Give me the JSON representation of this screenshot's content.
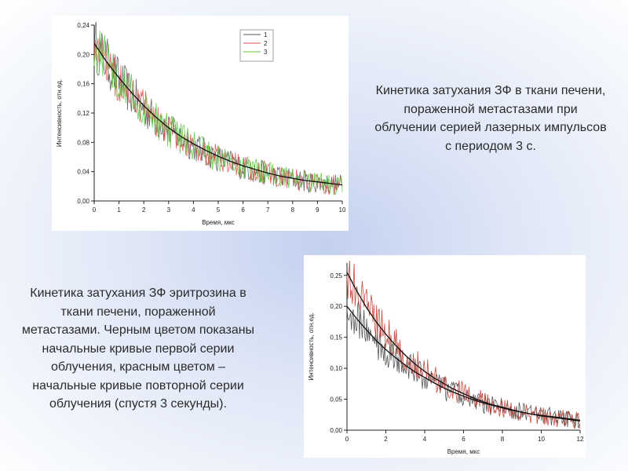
{
  "caption_top": "Кинетика затухания ЗФ в ткани печени, пораженной метастазами при облучении серией лазерных импульсов с периодом 3 с.",
  "caption_bottom": "Кинетика затухания ЗФ эритрозина в ткани печени, пораженной метастазами. Черным цветом показаны начальные кривые первой серии облучения, красным цветом – начальные кривые повторной серии облучения (спустя 3 секунды).",
  "chart_data": [
    {
      "type": "line",
      "xlabel": "Время, мкс",
      "ylabel": "Интенсивность, отн.ед.",
      "xlim": [
        0,
        10
      ],
      "ylim": [
        0,
        0.24
      ],
      "x_ticks": [
        "0",
        "1",
        "2",
        "3",
        "4",
        "5",
        "6",
        "7",
        "8",
        "9",
        "10"
      ],
      "y_ticks": [
        "0,00",
        "0,04",
        "0,08",
        "0,12",
        "0,16",
        "0,20",
        "0,24"
      ],
      "legend": {
        "position": "top-right",
        "entries": [
          "1",
          "2",
          "3"
        ]
      },
      "x": [
        0,
        0.5,
        1,
        1.5,
        2,
        2.5,
        3,
        3.5,
        4,
        4.5,
        5,
        5.5,
        6,
        6.5,
        7,
        7.5,
        8,
        8.5,
        9,
        9.5,
        10
      ],
      "series": [
        {
          "name": "1",
          "color": "#5a5a5a",
          "values": [
            0.215,
            0.19,
            0.165,
            0.145,
            0.127,
            0.11,
            0.097,
            0.085,
            0.075,
            0.066,
            0.058,
            0.052,
            0.046,
            0.041,
            0.037,
            0.033,
            0.03,
            0.027,
            0.025,
            0.023,
            0.022
          ]
        },
        {
          "name": "2",
          "color": "#d9534f",
          "values": [
            0.215,
            0.19,
            0.165,
            0.145,
            0.127,
            0.11,
            0.097,
            0.085,
            0.075,
            0.066,
            0.058,
            0.052,
            0.046,
            0.041,
            0.037,
            0.033,
            0.03,
            0.027,
            0.025,
            0.023,
            0.022
          ]
        },
        {
          "name": "3",
          "color": "#5cc93f",
          "values": [
            0.215,
            0.19,
            0.165,
            0.145,
            0.127,
            0.11,
            0.097,
            0.085,
            0.075,
            0.066,
            0.058,
            0.052,
            0.046,
            0.041,
            0.037,
            0.033,
            0.03,
            0.027,
            0.025,
            0.023,
            0.022
          ]
        }
      ],
      "fit_color": "#111111",
      "fit": [
        0.215,
        0.19,
        0.168,
        0.148,
        0.13,
        0.114,
        0.1,
        0.088,
        0.078,
        0.069,
        0.061,
        0.054,
        0.048,
        0.043,
        0.038,
        0.034,
        0.031,
        0.028,
        0.026,
        0.024,
        0.022
      ]
    },
    {
      "type": "line",
      "xlabel": "Время, мкс",
      "ylabel": "Интенсивность, отн.ед.",
      "xlim": [
        0,
        12
      ],
      "ylim": [
        0,
        0.27
      ],
      "x_ticks": [
        "0",
        "2",
        "4",
        "6",
        "8",
        "10",
        "12"
      ],
      "y_ticks": [
        "0,00",
        "0,05",
        "0,10",
        "0,15",
        "0,20",
        "0,25"
      ],
      "x": [
        0,
        0.5,
        1,
        1.5,
        2,
        2.5,
        3,
        3.5,
        4,
        4.5,
        5,
        5.5,
        6,
        6.5,
        7,
        7.5,
        8,
        8.5,
        9,
        9.5,
        10,
        10.5,
        11,
        11.5,
        12
      ],
      "series": [
        {
          "color": "#444444",
          "values": [
            0.2,
            0.18,
            0.162,
            0.145,
            0.13,
            0.117,
            0.105,
            0.094,
            0.085,
            0.076,
            0.068,
            0.061,
            0.055,
            0.049,
            0.044,
            0.04,
            0.036,
            0.032,
            0.029,
            0.026,
            0.024,
            0.022,
            0.02,
            0.018,
            0.016
          ]
        },
        {
          "color": "#c0392b",
          "values": [
            0.255,
            0.225,
            0.198,
            0.175,
            0.155,
            0.137,
            0.121,
            0.107,
            0.095,
            0.084,
            0.075,
            0.066,
            0.059,
            0.052,
            0.046,
            0.041,
            0.037,
            0.033,
            0.029,
            0.026,
            0.023,
            0.021,
            0.019,
            0.017,
            0.015
          ]
        }
      ],
      "fit_color": "#111111"
    }
  ]
}
